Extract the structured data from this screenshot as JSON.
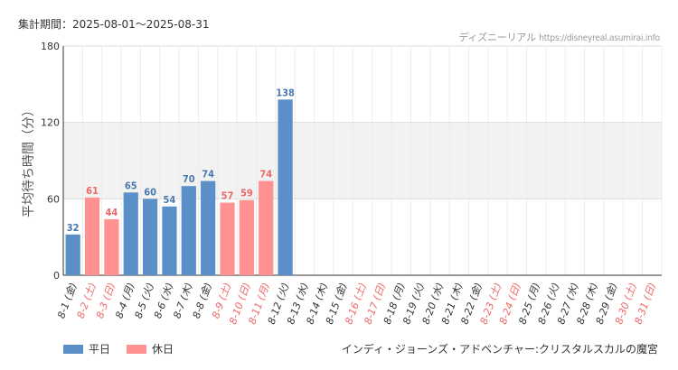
{
  "header": {
    "period": "集計期間：2025-08-01～2025-08-31",
    "source_site": "ディズニーリアル",
    "source_url": "https://disneyreal.asumirai.info"
  },
  "footer": {
    "attraction": "インディ・ジョーンズ・アドベンチャー:クリスタルスカルの魔宮"
  },
  "colors": {
    "weekday": "#5b8fc7",
    "holiday": "#ff9191",
    "weekday_label": "#4a78b0",
    "holiday_label": "#ee6666"
  },
  "chart_data": {
    "type": "bar",
    "ylabel": "平均待ち時間（分）",
    "xlabel": "",
    "ylim": [
      0,
      180
    ],
    "yticks": [
      0,
      60,
      120,
      180
    ],
    "grid": true,
    "categories": [
      "8-1 (金)",
      "8-2 (土)",
      "8-3 (日)",
      "8-4 (月)",
      "8-5 (火)",
      "8-6 (水)",
      "8-7 (木)",
      "8-8 (金)",
      "8-9 (土)",
      "8-10 (日)",
      "8-11 (月)",
      "8-12 (火)",
      "8-13 (水)",
      "8-14 (木)",
      "8-15 (金)",
      "8-16 (土)",
      "8-17 (日)",
      "8-18 (月)",
      "8-19 (火)",
      "8-20 (水)",
      "8-21 (木)",
      "8-22 (金)",
      "8-23 (土)",
      "8-24 (日)",
      "8-25 (月)",
      "8-26 (火)",
      "8-27 (水)",
      "8-28 (木)",
      "8-29 (金)",
      "8-30 (土)",
      "8-31 (日)"
    ],
    "day_type": [
      "weekday",
      "holiday",
      "holiday",
      "weekday",
      "weekday",
      "weekday",
      "weekday",
      "weekday",
      "holiday",
      "holiday",
      "holiday",
      "weekday",
      "weekday",
      "weekday",
      "weekday",
      "holiday",
      "holiday",
      "weekday",
      "weekday",
      "weekday",
      "weekday",
      "weekday",
      "holiday",
      "holiday",
      "weekday",
      "weekday",
      "weekday",
      "weekday",
      "weekday",
      "holiday",
      "holiday"
    ],
    "values": [
      32,
      61,
      44,
      65,
      60,
      54,
      70,
      74,
      57,
      59,
      74,
      138,
      null,
      null,
      null,
      null,
      null,
      null,
      null,
      null,
      null,
      null,
      null,
      null,
      null,
      null,
      null,
      null,
      null,
      null,
      null
    ],
    "legend": [
      {
        "name": "平日",
        "key": "weekday"
      },
      {
        "name": "休日",
        "key": "holiday"
      }
    ],
    "legend_position": "bottom-left"
  }
}
